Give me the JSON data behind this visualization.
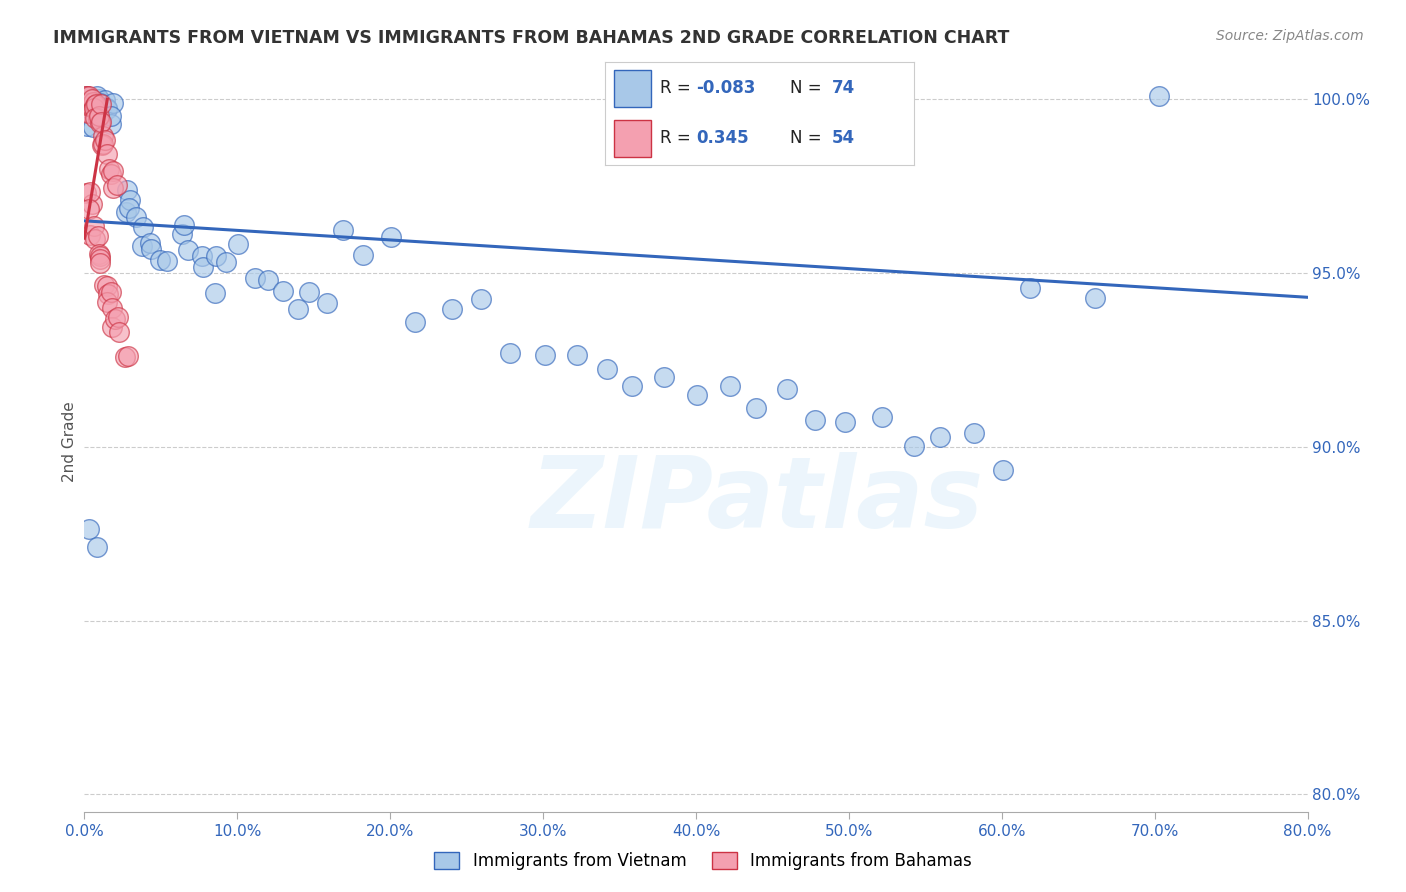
{
  "title": "IMMIGRANTS FROM VIETNAM VS IMMIGRANTS FROM BAHAMAS 2ND GRADE CORRELATION CHART",
  "source": "Source: ZipAtlas.com",
  "ylabel": "2nd Grade",
  "xlim": [
    0.0,
    0.8
  ],
  "ylim": [
    0.795,
    1.008
  ],
  "xtick_labels": [
    "0.0%",
    "10.0%",
    "20.0%",
    "30.0%",
    "40.0%",
    "50.0%",
    "60.0%",
    "70.0%",
    "80.0%"
  ],
  "xtick_vals": [
    0.0,
    0.1,
    0.2,
    0.3,
    0.4,
    0.5,
    0.6,
    0.7,
    0.8
  ],
  "ytick_labels": [
    "80.0%",
    "85.0%",
    "90.0%",
    "95.0%",
    "100.0%"
  ],
  "ytick_vals": [
    0.8,
    0.85,
    0.9,
    0.95,
    1.0
  ],
  "vietnam_R": -0.083,
  "vietnam_N": 74,
  "bahamas_R": 0.345,
  "bahamas_N": 54,
  "vietnam_color": "#a8c8e8",
  "bahamas_color": "#f4a0b0",
  "vietnam_line_color": "#3366bb",
  "bahamas_line_color": "#cc3344",
  "grid_color": "#cccccc",
  "title_color": "#333333",
  "axis_color": "#3366bb",
  "watermark": "ZIPatlas",
  "vietnam_x": [
    0.001,
    0.002,
    0.003,
    0.004,
    0.005,
    0.006,
    0.007,
    0.008,
    0.009,
    0.01,
    0.011,
    0.012,
    0.013,
    0.014,
    0.015,
    0.016,
    0.017,
    0.018,
    0.019,
    0.02,
    0.025,
    0.028,
    0.03,
    0.032,
    0.035,
    0.038,
    0.04,
    0.042,
    0.045,
    0.05,
    0.055,
    0.06,
    0.065,
    0.07,
    0.075,
    0.08,
    0.085,
    0.09,
    0.095,
    0.1,
    0.11,
    0.12,
    0.13,
    0.14,
    0.15,
    0.16,
    0.17,
    0.18,
    0.2,
    0.22,
    0.24,
    0.26,
    0.28,
    0.3,
    0.32,
    0.34,
    0.36,
    0.38,
    0.4,
    0.42,
    0.44,
    0.46,
    0.48,
    0.5,
    0.52,
    0.54,
    0.56,
    0.58,
    0.6,
    0.62,
    0.66,
    0.7,
    0.003,
    0.005
  ],
  "vietnam_y": [
    1.0,
    0.999,
    0.998,
    1.0,
    0.999,
    0.998,
    1.0,
    0.999,
    0.998,
    0.997,
    0.999,
    0.998,
    0.997,
    0.998,
    0.997,
    0.996,
    0.997,
    0.996,
    0.995,
    0.996,
    0.975,
    0.972,
    0.97,
    0.968,
    0.966,
    0.964,
    0.962,
    0.96,
    0.958,
    0.956,
    0.954,
    0.96,
    0.958,
    0.956,
    0.954,
    0.952,
    0.95,
    0.955,
    0.953,
    0.951,
    0.949,
    0.947,
    0.945,
    0.943,
    0.941,
    0.939,
    0.96,
    0.958,
    0.956,
    0.94,
    0.938,
    0.936,
    0.93,
    0.928,
    0.926,
    0.924,
    0.922,
    0.92,
    0.918,
    0.916,
    0.914,
    0.912,
    0.91,
    0.908,
    0.906,
    0.904,
    0.902,
    0.9,
    0.898,
    0.945,
    0.942,
    1.0,
    0.88,
    0.875
  ],
  "bahamas_x": [
    0.001,
    0.001,
    0.002,
    0.002,
    0.003,
    0.003,
    0.004,
    0.004,
    0.005,
    0.005,
    0.006,
    0.006,
    0.007,
    0.007,
    0.008,
    0.008,
    0.009,
    0.009,
    0.01,
    0.01,
    0.011,
    0.012,
    0.013,
    0.014,
    0.015,
    0.016,
    0.017,
    0.018,
    0.019,
    0.02,
    0.001,
    0.002,
    0.003,
    0.004,
    0.005,
    0.006,
    0.007,
    0.008,
    0.009,
    0.01,
    0.011,
    0.012,
    0.013,
    0.014,
    0.015,
    0.016,
    0.017,
    0.018,
    0.019,
    0.02,
    0.022,
    0.024,
    0.026,
    0.028
  ],
  "bahamas_y": [
    1.0,
    0.999,
    0.999,
    0.998,
    0.998,
    0.997,
    0.997,
    0.996,
    0.996,
    0.997,
    0.998,
    0.997,
    0.998,
    0.997,
    0.996,
    0.995,
    0.994,
    0.995,
    0.994,
    0.993,
    0.992,
    0.99,
    0.988,
    0.986,
    0.984,
    0.982,
    0.98,
    0.978,
    0.976,
    0.975,
    0.973,
    0.971,
    0.969,
    0.967,
    0.965,
    0.963,
    0.961,
    0.959,
    0.957,
    0.955,
    0.953,
    0.951,
    0.949,
    0.947,
    0.945,
    0.943,
    0.941,
    0.939,
    0.937,
    0.935,
    0.933,
    0.931,
    0.929,
    0.927
  ]
}
